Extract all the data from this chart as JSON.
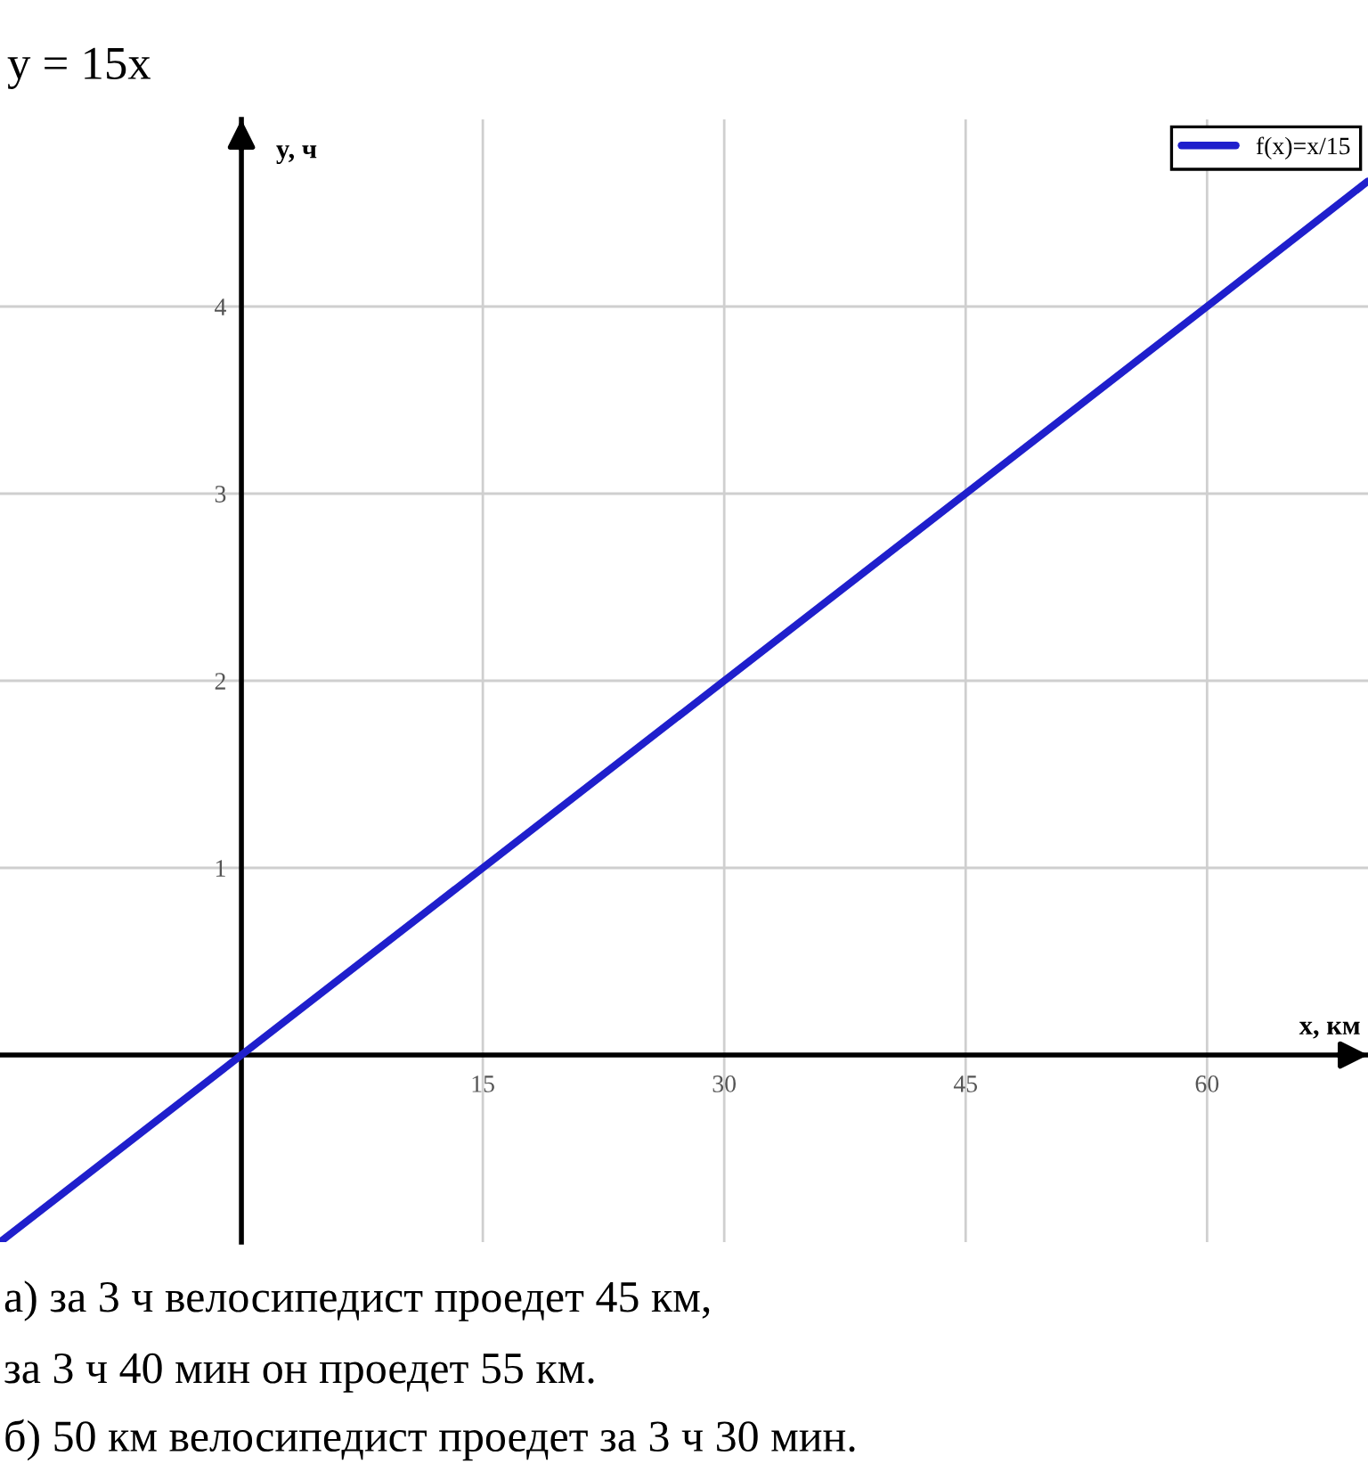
{
  "chart_data": {
    "type": "line",
    "title": "y = 15x",
    "xlabel": "x, км",
    "ylabel": "y, ч",
    "x": [
      -15,
      0,
      15,
      30,
      45,
      60,
      70
    ],
    "series": [
      {
        "name": "f(x)=x/15",
        "color": "#1f1fcc",
        "values": [
          -1,
          0,
          1,
          2,
          3,
          4,
          4.67
        ]
      }
    ],
    "xlim": [
      -15,
      70
    ],
    "ylim": [
      -1,
      5
    ],
    "xticks": [
      15,
      30,
      45,
      60
    ],
    "yticks": [
      1,
      2,
      3,
      4
    ],
    "grid": true,
    "legend": "top right",
    "marker": "none",
    "line_style": "solid",
    "annotations": [
      "а) за 3 ч велосипедист проедет 45 км,",
      "за 3 ч 40 мин он проедет 55 км.",
      "б) 50 км велосипедист проедет за 3 ч 30 мин."
    ]
  }
}
